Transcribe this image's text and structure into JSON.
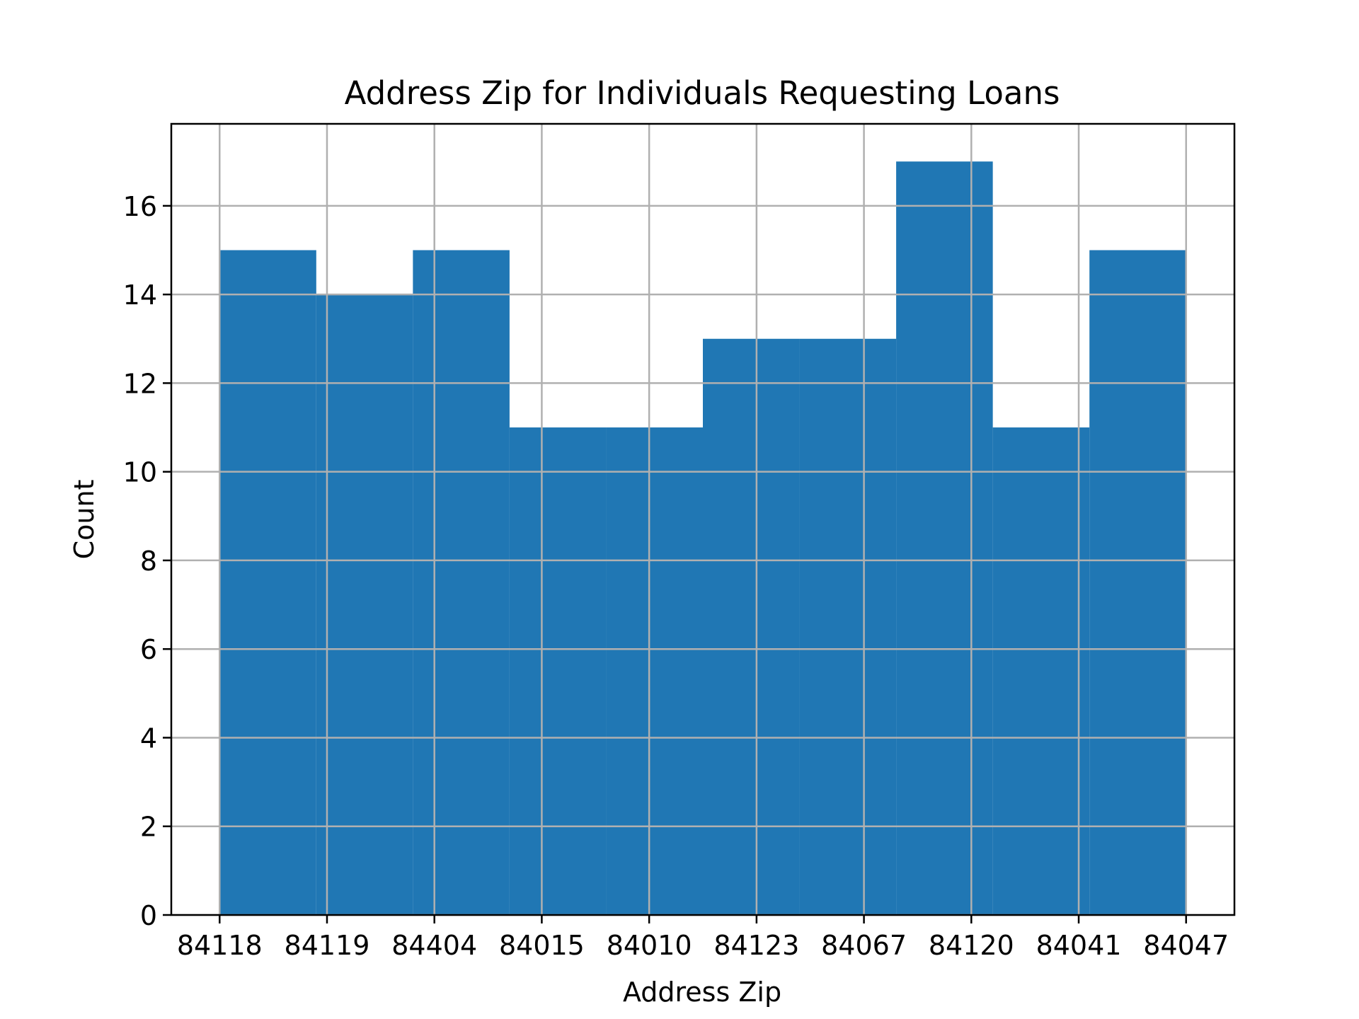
{
  "chart_data": {
    "type": "bar",
    "subtype": "histogram",
    "title": "Address Zip for Individuals Requesting Loans",
    "xlabel": "Address Zip",
    "ylabel": "Count",
    "x_categories": [
      "84118",
      "84119",
      "84404",
      "84015",
      "84010",
      "84123",
      "84067",
      "84120",
      "84041",
      "84047"
    ],
    "bins": [
      {
        "start": 0.0,
        "end": 0.9,
        "count": 15
      },
      {
        "start": 0.9,
        "end": 1.8,
        "count": 14
      },
      {
        "start": 1.8,
        "end": 2.7,
        "count": 15
      },
      {
        "start": 2.7,
        "end": 3.6,
        "count": 11
      },
      {
        "start": 3.6,
        "end": 4.5,
        "count": 11
      },
      {
        "start": 4.5,
        "end": 5.4,
        "count": 13
      },
      {
        "start": 5.4,
        "end": 6.3,
        "count": 13
      },
      {
        "start": 6.3,
        "end": 7.2,
        "count": 17
      },
      {
        "start": 7.2,
        "end": 8.1,
        "count": 11
      },
      {
        "start": 8.1,
        "end": 9.0,
        "count": 15
      }
    ],
    "xlim": [
      -0.45,
      9.45
    ],
    "ylim": [
      0,
      17.85
    ],
    "y_ticks": [
      0,
      2,
      4,
      6,
      8,
      10,
      12,
      14,
      16
    ],
    "grid": true,
    "bar_color": "#2077b4"
  }
}
